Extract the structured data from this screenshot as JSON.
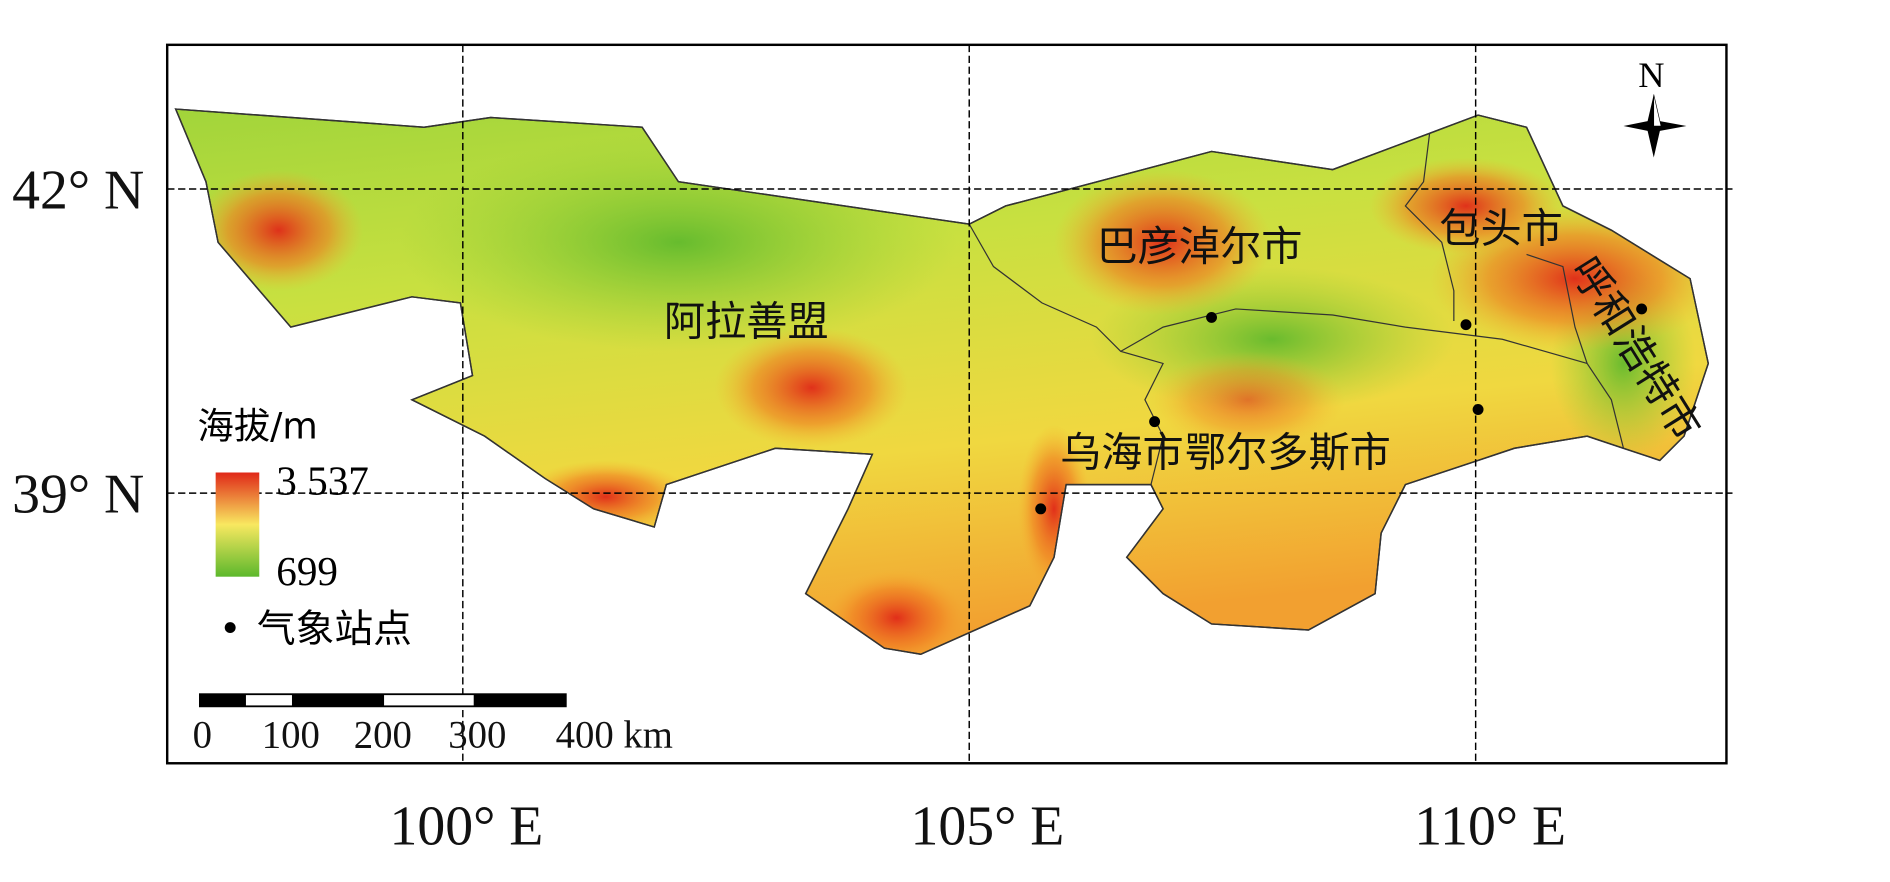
{
  "axes": {
    "lat_labels": [
      "42° N",
      "39° N"
    ],
    "lon_labels": [
      "100° E",
      "105° E",
      "110° E"
    ]
  },
  "regions": [
    "阿拉善盟",
    "巴彦淖尔市",
    "包头市",
    "呼和浩特市",
    "乌海市",
    "鄂尔多斯市"
  ],
  "legend": {
    "title": "海拔/m",
    "max": "3 537",
    "min": "699",
    "station": "气象站点"
  },
  "scale_bar": {
    "labels": [
      "0",
      "100",
      "200",
      "300",
      "400 km"
    ]
  },
  "north": "N"
}
